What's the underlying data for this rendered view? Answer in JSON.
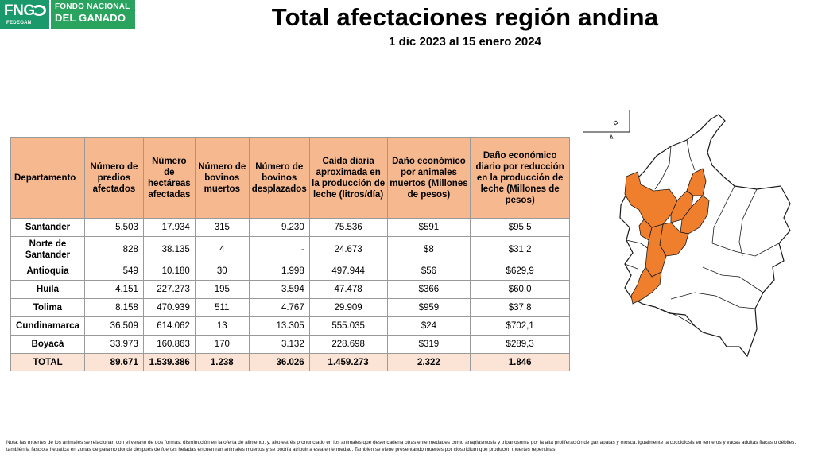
{
  "logo": {
    "mark": "FNG",
    "mark_sub": "FEDEGAN",
    "line1": "FONDO NACIONAL",
    "line2": "DEL GANADO"
  },
  "title": "Total afectaciones región andina",
  "subtitle": "1 dic 2023 al 15 enero 2024",
  "table": {
    "headers": [
      "Departamento",
      "Número de predios afectados",
      "Número de hectáreas afectadas",
      "Número de bovinos muertos",
      "Número de bovinos desplazados",
      "Caída diaria aproximada en la producción de leche (litros/día)",
      "Daño económico por animales muertos (Millones de pesos)",
      "Daño económico diario por reducción en la producción de leche (Millones de pesos)"
    ],
    "rows": [
      {
        "name": "Santander",
        "predios": "5.503",
        "hectareas": "17.934",
        "muertos": "315",
        "desplazados": "9.230",
        "leche": "75.536",
        "dano_muertos": "$591",
        "dano_leche": "$95,5"
      },
      {
        "name": "Norte de Santander",
        "predios": "828",
        "hectareas": "38.135",
        "muertos": "4",
        "desplazados": "-",
        "leche": "24.673",
        "dano_muertos": "$8",
        "dano_leche": "$31,2"
      },
      {
        "name": "Antioquia",
        "predios": "549",
        "hectareas": "10.180",
        "muertos": "30",
        "desplazados": "1.998",
        "leche": "497.944",
        "dano_muertos": "$56",
        "dano_leche": "$629,9"
      },
      {
        "name": "Huila",
        "predios": "4.151",
        "hectareas": "227.273",
        "muertos": "195",
        "desplazados": "3.594",
        "leche": "47.478",
        "dano_muertos": "$366",
        "dano_leche": "$60,0"
      },
      {
        "name": "Tolima",
        "predios": "8.158",
        "hectareas": "470.939",
        "muertos": "511",
        "desplazados": "4.767",
        "leche": "29.909",
        "dano_muertos": "$959",
        "dano_leche": "$37,8"
      },
      {
        "name": "Cundinamarca",
        "predios": "36.509",
        "hectareas": "614.062",
        "muertos": "13",
        "desplazados": "13.305",
        "leche": "555.035",
        "dano_muertos": "$24",
        "dano_leche": "$702,1"
      },
      {
        "name": "Boyacá",
        "predios": "33.973",
        "hectareas": "160.863",
        "muertos": "170",
        "desplazados": "3.132",
        "leche": "228.698",
        "dano_muertos": "$319",
        "dano_leche": "$289,3"
      }
    ],
    "total": {
      "name": "TOTAL",
      "predios": "89.671",
      "hectareas": "1.539.386",
      "muertos": "1.238",
      "desplazados": "36.026",
      "leche": "1.459.273",
      "dano_muertos": "2.322",
      "dano_leche": "1.846"
    }
  },
  "map": {
    "highlight_color": "#f07f2d",
    "outline_color": "#1a1a1a"
  },
  "note": "Nota: las muertes de los animales se relacionan con el verano de dos formas: disminución en la oferta de alimento, y, alto estrés pronunciado en los animales que desencadena otras enfermedades como anaplasmosis y tripanosoma por la alta proliferación de garrapatas y mosca, igualmente la coccidiosis en terneros y vacas adultas flacas o débiles, también la fasciola hepática en zonas de paramo donde después de fuertes heladas encuentran animales muertos y se podría atribuir a esta enfermedad. También se viene presentando muertes por clostridium que producen muertes repentinas."
}
